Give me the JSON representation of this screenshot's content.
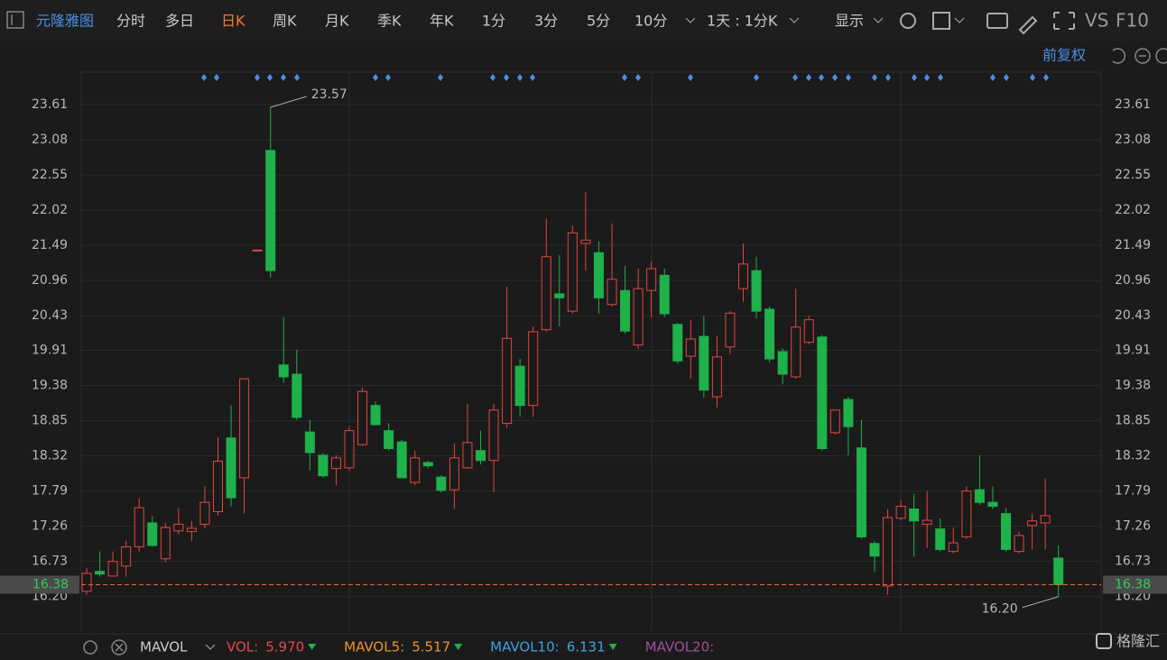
{
  "toolbar": {
    "stock": "元隆雅图",
    "tabs": [
      "分时",
      "多日",
      "日K",
      "周K",
      "月K",
      "季K",
      "年K",
      "1分",
      "3分",
      "5分",
      "10分"
    ],
    "period": "1天 : 1分K",
    "display": "显示",
    "vs": "VS",
    "f10": "F10",
    "adjust": "前复权"
  },
  "indicators": {
    "name": "MAVOL",
    "items": [
      {
        "label": "VOL:",
        "value": "5.970",
        "color": "#e8474a"
      },
      {
        "label": "MAVOL5:",
        "value": "5.517",
        "color": "#f0902f"
      },
      {
        "label": "MAVOL10:",
        "value": "6.131",
        "color": "#3aa3e3"
      },
      {
        "label": "MAVOL20:",
        "value": "",
        "color": "#a24f9e"
      }
    ]
  },
  "logo": "格隆汇",
  "chart_data": {
    "type": "candlestick",
    "open": [
      16.28,
      16.58,
      16.51,
      16.66,
      16.95,
      17.31,
      16.77,
      17.19,
      17.18,
      17.29,
      17.48,
      18.59,
      17.99,
      21.42,
      22.92,
      19.69,
      19.55,
      18.68,
      18.33,
      18.13,
      18.14,
      18.49,
      19.08,
      18.7,
      18.53,
      17.92,
      18.22,
      18.0,
      17.81,
      18.14,
      18.4,
      18.25,
      18.81,
      19.67,
      19.08,
      20.22,
      20.76,
      20.5,
      21.52,
      21.38,
      20.6,
      20.81,
      19.99,
      20.81,
      21.04,
      20.3,
      19.82,
      20.12,
      19.21,
      19.96,
      20.84,
      21.11,
      20.53,
      19.89,
      19.51,
      20.03,
      20.11,
      18.67,
      19.17,
      18.44,
      17.0,
      16.36,
      17.38,
      17.52,
      17.29,
      17.22,
      16.88,
      17.1,
      17.81,
      17.62,
      17.45,
      16.88,
      17.27,
      17.31,
      16.78
    ],
    "high": [
      16.63,
      16.88,
      16.88,
      17.04,
      17.68,
      17.41,
      17.31,
      17.53,
      17.34,
      17.86,
      18.6,
      19.08,
      19.48,
      21.42,
      23.57,
      20.41,
      19.92,
      18.86,
      18.36,
      18.33,
      18.76,
      19.35,
      19.14,
      18.81,
      18.56,
      18.4,
      18.25,
      18.03,
      18.51,
      19.1,
      18.7,
      19.1,
      20.87,
      19.78,
      20.27,
      21.89,
      21.34,
      21.79,
      22.29,
      21.55,
      21.82,
      21.18,
      21.14,
      21.25,
      21.14,
      20.32,
      20.37,
      20.43,
      20.13,
      20.5,
      21.52,
      21.32,
      20.57,
      19.94,
      20.84,
      20.43,
      20.14,
      19.01,
      19.21,
      18.86,
      17.04,
      17.52,
      17.65,
      17.75,
      17.79,
      17.38,
      17.24,
      17.86,
      18.33,
      17.86,
      17.54,
      17.18,
      17.45,
      17.98,
      16.97
    ],
    "low": [
      16.23,
      16.5,
      16.5,
      16.5,
      16.88,
      16.95,
      16.72,
      17.14,
      17.04,
      17.23,
      17.42,
      17.56,
      17.45,
      21.42,
      21.0,
      19.42,
      18.86,
      18.1,
      17.99,
      17.88,
      18.1,
      18.47,
      18.78,
      18.4,
      17.98,
      17.88,
      18.13,
      17.77,
      17.52,
      18.13,
      18.19,
      17.77,
      18.74,
      18.91,
      18.91,
      20.19,
      20.27,
      20.46,
      21.11,
      20.46,
      20.57,
      20.16,
      19.93,
      20.41,
      20.41,
      19.71,
      19.48,
      19.2,
      19.05,
      19.85,
      20.64,
      20.39,
      19.73,
      19.4,
      19.48,
      20.0,
      18.4,
      18.64,
      18.33,
      17.07,
      16.57,
      16.23,
      17.35,
      16.8,
      16.93,
      16.88,
      16.85,
      17.07,
      17.58,
      17.52,
      16.88,
      16.85,
      16.91,
      16.91,
      16.2
    ],
    "close": [
      16.55,
      16.54,
      16.73,
      16.95,
      17.54,
      16.97,
      17.24,
      17.29,
      17.23,
      17.62,
      18.24,
      17.69,
      19.48,
      21.42,
      21.11,
      19.51,
      18.9,
      18.37,
      18.02,
      18.29,
      18.7,
      19.29,
      18.79,
      18.43,
      17.99,
      18.29,
      18.17,
      17.8,
      18.29,
      18.52,
      18.25,
      19.01,
      20.09,
      19.08,
      20.19,
      21.32,
      20.7,
      21.68,
      21.57,
      20.7,
      20.98,
      20.2,
      20.84,
      21.14,
      20.46,
      19.75,
      20.08,
      19.31,
      19.81,
      20.47,
      21.21,
      20.5,
      19.78,
      19.55,
      20.26,
      20.37,
      18.43,
      19.01,
      18.76,
      17.1,
      16.81,
      17.39,
      17.56,
      17.34,
      17.35,
      16.91,
      17.01,
      17.79,
      17.62,
      17.56,
      16.91,
      17.12,
      17.34,
      17.42,
      16.38
    ],
    "up_color": "#e5453f",
    "down_color": "#1fb14a",
    "high_label": "23.57",
    "high_index": 14,
    "low_label": "16.20",
    "low_index": 74,
    "last_price": 16.38,
    "ylim": [
      15.68,
      24.1
    ],
    "yticks": [
      {
        "value": 16.2,
        "label": "16.20"
      },
      16.73,
      17.26,
      17.79,
      18.32,
      18.85,
      19.38,
      19.91,
      20.43,
      20.96,
      21.49,
      22.02,
      22.55,
      23.08,
      23.61
    ],
    "grid": true
  }
}
